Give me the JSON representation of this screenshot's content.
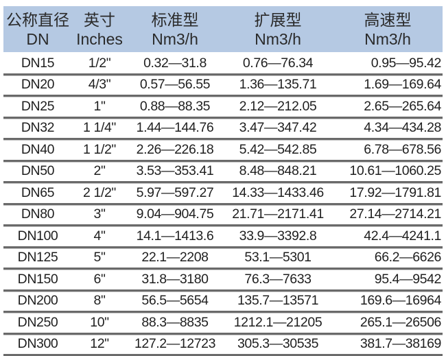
{
  "header": [
    {
      "zh": "公称直径",
      "en": "DN"
    },
    {
      "zh": "英寸",
      "en": "Inches"
    },
    {
      "zh": "标准型",
      "en": "Nm3/h"
    },
    {
      "zh": "扩展型",
      "en": "Nm3/h"
    },
    {
      "zh": "高速型",
      "en": "Nm3/h"
    }
  ],
  "rows": [
    [
      "DN15",
      "1/2\"",
      "0.32—31.8",
      "0.76—76.34",
      "0.95—95.42"
    ],
    [
      "DN20",
      "4/3\"",
      "0.57—56.55",
      "1.36—135.71",
      "1.69—169.64"
    ],
    [
      "DN25",
      "1\"",
      "0.88—88.35",
      "2.12—212.05",
      "2.65—265.64"
    ],
    [
      "DN32",
      "1 1/4\"",
      "1.44—144.76",
      "3.47—347.42",
      "4.34—434.28"
    ],
    [
      "DN40",
      "1 1/2\"",
      "2.26—226.18",
      "5.42—542.85",
      "6.78—678.56"
    ],
    [
      "DN50",
      "2\"",
      "3.53—353.41",
      "8.48—848.21",
      "10.61—1060.25"
    ],
    [
      "DN65",
      "2 1/2\"",
      "5.97—597.27",
      "14.33—1433.46",
      "17.92—1791.81"
    ],
    [
      "DN80",
      "3\"",
      "9.04—904.75",
      "21.71—2171.41",
      "27.14—2714.21"
    ],
    [
      "DN100",
      "4\"",
      "14.1—1413.6",
      "33.9—3392.8",
      "42.4—4241.1"
    ],
    [
      "DN125",
      "5\"",
      "22.1—2208",
      "53.1—5301",
      "66.2—6626"
    ],
    [
      "DN150",
      "6\"",
      "31.8—3180",
      "76.3—7633",
      "95.4—9542"
    ],
    [
      "DN200",
      "8\"",
      "56.5—5654",
      "135.7—13571",
      "169.6—16964"
    ],
    [
      "DN250",
      "10\"",
      "88.3—8835",
      "1212.1—21205",
      "265.1—26506"
    ],
    [
      "DN300",
      "12\"",
      "127.2—12723",
      "305.3—30535",
      "381.7—38169"
    ]
  ],
  "colors": {
    "header_bg": "#b5c9e3",
    "rule": "#6a6a6a"
  }
}
